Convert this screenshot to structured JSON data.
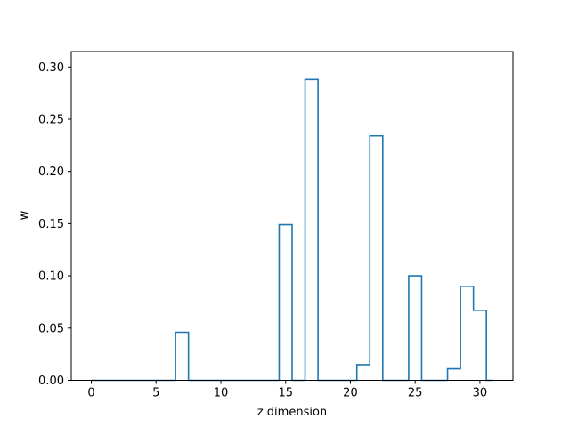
{
  "chart_data": {
    "type": "step",
    "title": "",
    "xlabel": "z dimension",
    "ylabel": "w",
    "xlim": [
      -1.55,
      32.55
    ],
    "ylim": [
      0,
      0.3147
    ],
    "xticks": [
      0,
      5,
      10,
      15,
      20,
      25,
      30
    ],
    "xtick_labels": [
      "0",
      "5",
      "10",
      "15",
      "20",
      "25",
      "30"
    ],
    "yticks": [
      0.0,
      0.05,
      0.1,
      0.15,
      0.2,
      0.25,
      0.3
    ],
    "ytick_labels": [
      "0.00",
      "0.05",
      "0.10",
      "0.15",
      "0.20",
      "0.25",
      "0.30"
    ],
    "grid": false,
    "line_color": "#1f77b4",
    "series": [
      {
        "x": [
          0,
          1,
          2,
          3,
          4,
          5,
          6,
          7,
          8,
          9,
          10,
          11,
          12,
          13,
          14,
          15,
          16,
          17,
          18,
          19,
          20,
          21,
          22,
          23,
          24,
          25,
          26,
          27,
          28,
          29,
          30,
          31
        ],
        "values": [
          0,
          0,
          0,
          0,
          0,
          0,
          0,
          0.046,
          0,
          0,
          0,
          0,
          0,
          0,
          0,
          0.149,
          0,
          0.288,
          0,
          0,
          0,
          0.015,
          0.234,
          0,
          0,
          0.1,
          0,
          0,
          0.011,
          0.09,
          0.067,
          0
        ]
      }
    ]
  }
}
